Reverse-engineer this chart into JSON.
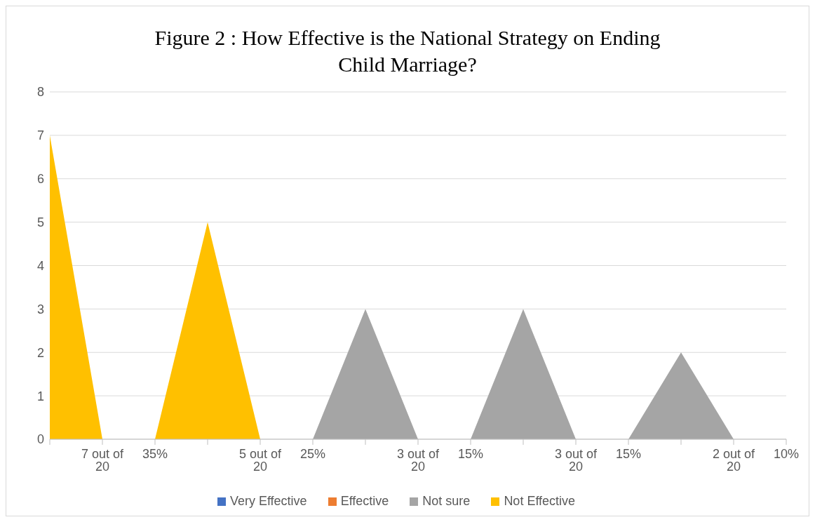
{
  "chart_data": {
    "type": "area",
    "title": "Figure 2 : How Effective is the National Strategy on Ending Child Marriage?",
    "categories": [
      null,
      "7 out of 20",
      "35%",
      null,
      "5 out of 20",
      "25%",
      null,
      "3 out of 20",
      "15%",
      null,
      "3 out of 20",
      "15%",
      null,
      "2 out of 20",
      "10%"
    ],
    "series": [
      {
        "name": "Very Effective",
        "color": "#4472c4",
        "values": [
          null,
          null,
          null,
          null,
          null,
          null,
          null,
          null,
          null,
          null,
          null,
          null,
          null,
          null,
          null
        ]
      },
      {
        "name": "Effective",
        "color": "#ed7d31",
        "values": [
          null,
          null,
          null,
          null,
          null,
          null,
          null,
          null,
          null,
          null,
          null,
          null,
          null,
          null,
          null
        ]
      },
      {
        "name": "Not sure",
        "color": "#a5a5a5",
        "values": [
          0,
          0,
          0,
          0,
          0,
          0,
          3,
          0,
          0,
          3,
          0,
          0,
          2,
          0,
          0
        ]
      },
      {
        "name": "Not Effective",
        "color": "#ffc000",
        "values": [
          7,
          0,
          0,
          5,
          0,
          0,
          0,
          0,
          0,
          0,
          0,
          0,
          0,
          0,
          0
        ]
      }
    ],
    "ylim": [
      0,
      8
    ],
    "yticks": [
      0,
      1,
      2,
      3,
      4,
      5,
      6,
      7,
      8
    ],
    "grid": "y",
    "legend": "bottom"
  }
}
